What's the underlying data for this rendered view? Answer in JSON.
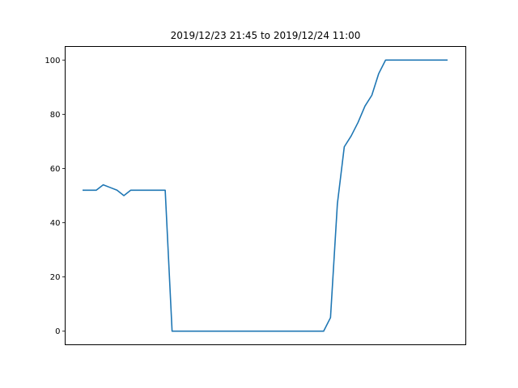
{
  "chart_data": {
    "type": "line",
    "title": "2019/12/23 21:45 to 2019/12/24 11:00",
    "xlabel": "",
    "ylabel": "",
    "x_ticks_shown": false,
    "ylim": [
      -5,
      105
    ],
    "yticks": [
      0,
      20,
      40,
      60,
      80,
      100
    ],
    "grid": false,
    "legend": "none",
    "line_color": "#1f77b4",
    "series": [
      {
        "values": [
          52,
          52,
          52,
          54,
          53,
          52,
          50,
          52,
          52,
          52,
          52,
          52,
          52,
          0,
          0,
          0,
          0,
          0,
          0,
          0,
          0,
          0,
          0,
          0,
          0,
          0,
          0,
          0,
          0,
          0,
          0,
          0,
          0,
          0,
          0,
          0,
          5,
          47,
          68,
          72,
          77,
          83,
          87,
          95,
          100,
          100,
          100,
          100,
          100,
          100,
          100,
          100,
          100,
          100
        ]
      }
    ]
  }
}
